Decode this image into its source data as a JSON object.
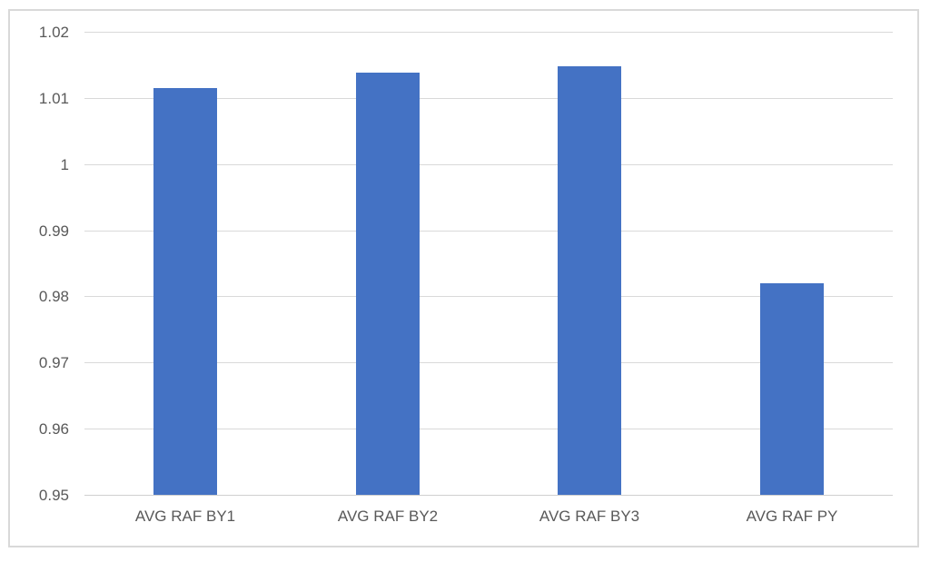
{
  "chart_data": {
    "type": "bar",
    "title": "",
    "xlabel": "",
    "ylabel": "",
    "categories": [
      "AVG RAF BY1",
      "AVG RAF BY2",
      "AVG RAF BY3",
      "AVG RAF PY"
    ],
    "values": [
      1.0115,
      1.0138,
      1.0148,
      0.982
    ],
    "ylim": [
      0.95,
      1.02
    ],
    "yticks": [
      1.02,
      1.01,
      1,
      0.99,
      0.98,
      0.97,
      0.96,
      0.95
    ],
    "ytick_labels": [
      "1.02",
      "1.01",
      "1",
      "0.99",
      "0.98",
      "0.97",
      "0.96",
      "0.95"
    ],
    "grid": true,
    "legend": false,
    "colors": {
      "bar_fill": "#4472C4",
      "gridline": "#D9D9D9",
      "axis_text": "#595959",
      "chart_border": "#D9D9D9",
      "background": "#FFFFFF"
    }
  }
}
